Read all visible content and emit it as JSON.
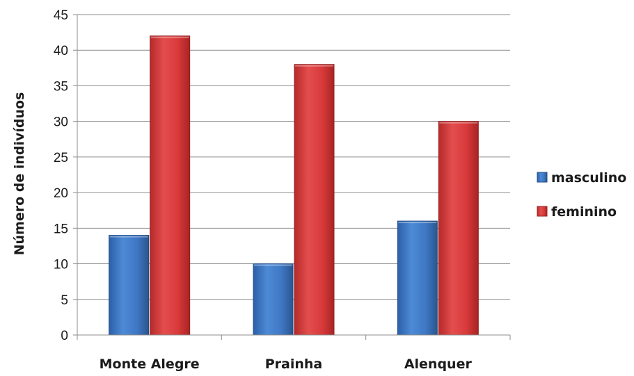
{
  "chart_data": {
    "type": "bar",
    "title": "",
    "xlabel": "",
    "ylabel": "Número de indivíduos",
    "categories": [
      "Monte Alegre",
      "Prainha",
      "Alenquer"
    ],
    "series": [
      {
        "name": "masculino",
        "values": [
          14,
          10,
          16
        ],
        "color": "#3f78c5"
      },
      {
        "name": "feminino",
        "values": [
          42,
          38,
          30
        ],
        "color": "#d83a3a"
      }
    ],
    "ylim": [
      0,
      45
    ],
    "yticks": [
      0,
      5,
      10,
      15,
      20,
      25,
      30,
      35,
      40,
      45
    ],
    "grid": true,
    "legend": "right"
  }
}
